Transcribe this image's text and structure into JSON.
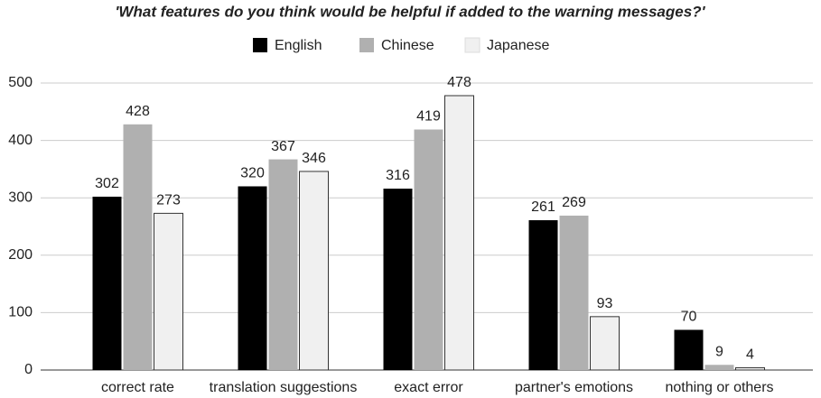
{
  "chart_data": {
    "type": "bar",
    "title": "'What features do you think would be helpful if added to the warning messages?'",
    "categories": [
      "correct rate",
      "translation suggestions",
      "exact error",
      "partner's emotions",
      "nothing or others"
    ],
    "series": [
      {
        "name": "English",
        "color": "#000000",
        "values": [
          302,
          320,
          316,
          261,
          70
        ]
      },
      {
        "name": "Chinese",
        "color": "#b0b0b0",
        "values": [
          428,
          367,
          419,
          269,
          9
        ]
      },
      {
        "name": "Japanese",
        "color": "#f0f0f0",
        "values": [
          273,
          346,
          478,
          93,
          4
        ]
      }
    ],
    "ylim": [
      0,
      500
    ],
    "yticks": [
      0,
      100,
      200,
      300,
      400,
      500
    ],
    "grid": true,
    "legend": "top"
  }
}
